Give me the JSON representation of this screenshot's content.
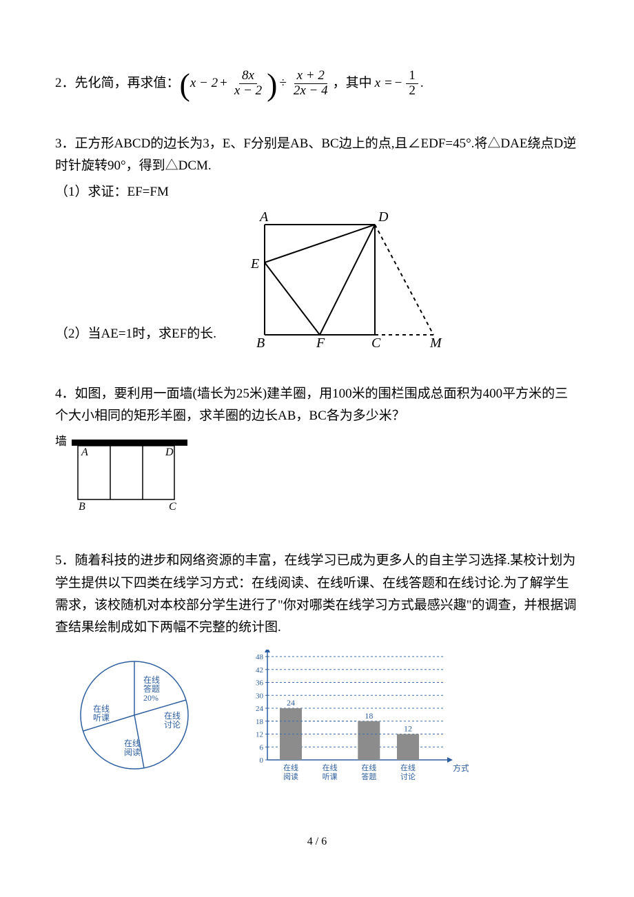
{
  "p2": {
    "num": "2．",
    "lead": "先化简，再求值：",
    "expr": {
      "x_minus_2": "x − 2",
      "plus": "+",
      "frac1_num": "8x",
      "frac1_den": "x − 2",
      "div": "÷",
      "frac2_num": "x + 2",
      "frac2_den": "2x − 4",
      "comma": "，其中",
      "x_eq": "x =",
      "neg": "−",
      "half_num": "1",
      "half_den": "2",
      "period": "."
    }
  },
  "p3": {
    "num": "3．",
    "text": "正方形ABCD的边长为3，E、F分别是AB、BC边上的点,且∠EDF=45°.将△DAE绕点D逆时针旋转90°，得到△DCM.",
    "sub1": "（1）求证：EF=FM",
    "sub2": "（2）当AE=1时，求EF的长.",
    "labels": {
      "A": "A",
      "B": "B",
      "C": "C",
      "D": "D",
      "E": "E",
      "F": "F",
      "M": "M"
    }
  },
  "p4": {
    "num": "4．",
    "text": "如图，要利用一面墙(墙长为25米)建羊圈，用100米的围栏围成总面积为400平方米的三个大小相同的矩形羊圈，求羊圈的边长AB，BC各为多少米？",
    "labels": {
      "wall": "墙",
      "A": "A",
      "B": "B",
      "C": "C",
      "D": "D"
    }
  },
  "p5": {
    "num": "5．",
    "text": "随着科技的进步和网络资源的丰富，在线学习已成为更多人的自主学习选择.某校计划为学生提供以下四类在线学习方式：在线阅读、在线听课、在线答题和在线讨论.为了解学生需求，该校随机对本校部分学生进行了\"你对哪类在线学习方式最感兴趣\"的调查，并根据调查结果绘制成如下两幅不完整的统计图.",
    "pie": {
      "labels": {
        "answer": "在线\n答题\n20%",
        "discuss": "在线\n讨论",
        "listen": "在线\n听课",
        "read": "在线\n阅读"
      },
      "colors": {
        "line": "#2d5fa0"
      }
    },
    "bar": {
      "yticks": [
        "0",
        "6",
        "12",
        "18",
        "24",
        "30",
        "36",
        "42",
        "48"
      ],
      "ymax": 48,
      "xlabels": [
        "在线\n阅读",
        "在线\n听课",
        "在线\n答题",
        "在线\n讨论"
      ],
      "values": [
        24,
        null,
        18,
        12
      ],
      "value_labels": [
        "24",
        "",
        "18",
        "12"
      ],
      "axis_label": "方式",
      "bar_color": "#8c8c8c",
      "grid_color": "#3a6fb0",
      "axis_color": "#2d5fa0",
      "text_color": "#2d5fa0"
    }
  },
  "pagenum": "4 / 6"
}
